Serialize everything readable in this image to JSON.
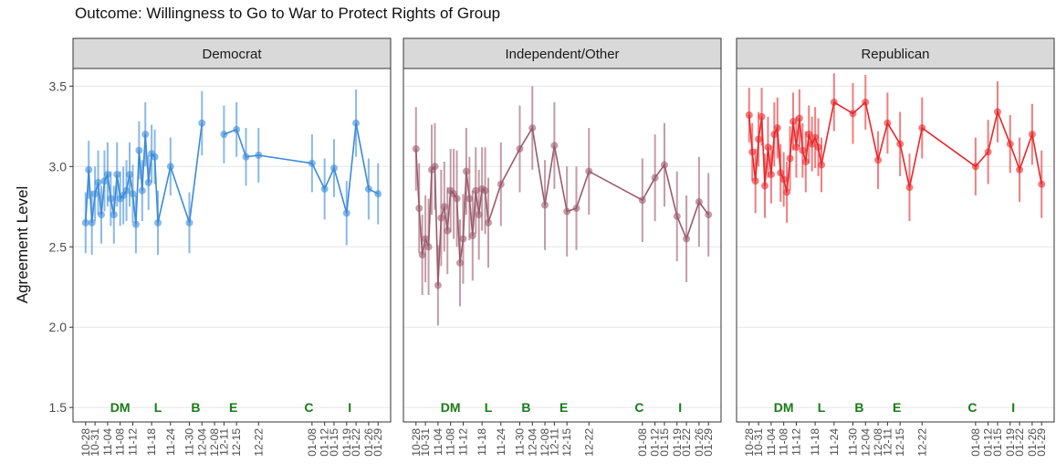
{
  "chart_data": {
    "type": "line",
    "title": "Outcome: Willingness to Go to War to Protect Rights of Group",
    "y_label": "Agreement Level",
    "x": [
      "10-28",
      "10-29",
      "10-30",
      "10-31",
      "11-01",
      "11-02",
      "11-03",
      "11-04",
      "11-05",
      "11-06",
      "11-07",
      "11-08",
      "11-09",
      "11-10",
      "11-11",
      "11-12",
      "11-13",
      "11-14",
      "11-15",
      "11-16",
      "11-17",
      "11-18",
      "11-19",
      "11-20",
      "11-24",
      "11-30",
      "12-04",
      "12-08",
      "12-11",
      "12-15",
      "12-18",
      "12-22",
      "01-08",
      "01-12",
      "01-15",
      "01-19",
      "01-22",
      "01-26",
      "01-29"
    ],
    "xlim": [
      "10-24",
      "02-02"
    ],
    "xticks": [
      "10-28",
      "10-31",
      "11-04",
      "11-08",
      "11-12",
      "11-18",
      "11-24",
      "11-30",
      "12-04",
      "12-08",
      "12-11",
      "12-15",
      "12-22",
      "01-08",
      "01-12",
      "01-15",
      "01-19",
      "01-22",
      "01-26",
      "01-29"
    ],
    "ylim": [
      1.41,
      3.61
    ],
    "yticks": [
      1.5,
      {
        "value": 2,
        "label": "2.0"
      },
      2.5,
      {
        "value": 3,
        "label": "3.0"
      },
      3.5
    ],
    "grid": true,
    "series": [
      {
        "name": "Democrat",
        "color": "#3a8ad8",
        "values": [
          2.65,
          2.98,
          2.65,
          2.83,
          2.9,
          2.7,
          2.91,
          2.95,
          2.8,
          2.7,
          2.95,
          2.8,
          2.82,
          2.85,
          2.95,
          2.83,
          2.64,
          3.1,
          2.85,
          3.2,
          2.9,
          3.08,
          3.06,
          2.65,
          3.0,
          2.65,
          3.27,
          null,
          3.2,
          3.23,
          3.06,
          3.07,
          3.02,
          2.86,
          2.99,
          2.71,
          3.27,
          2.86,
          2.83
        ],
        "errors": [
          0.19,
          0.18,
          0.2,
          0.17,
          0.2,
          0.18,
          0.19,
          0.2,
          0.17,
          0.18,
          0.2,
          0.17,
          0.18,
          0.19,
          0.2,
          0.18,
          0.18,
          0.18,
          0.19,
          0.2,
          0.17,
          0.18,
          0.17,
          0.2,
          0.18,
          0.19,
          0.2,
          null,
          0.18,
          0.17,
          0.18,
          0.17,
          0.18,
          0.19,
          0.18,
          0.2,
          0.21,
          0.19,
          0.19
        ]
      },
      {
        "name": "Independent/Other",
        "color": "#9b5a6e",
        "values": [
          3.11,
          2.74,
          2.45,
          2.55,
          2.5,
          2.98,
          3.0,
          2.26,
          2.68,
          2.75,
          2.6,
          2.85,
          2.83,
          2.8,
          2.4,
          2.55,
          2.97,
          2.8,
          2.57,
          2.85,
          2.7,
          2.86,
          2.85,
          2.65,
          2.89,
          3.11,
          3.24,
          2.76,
          3.13,
          2.72,
          2.74,
          2.97,
          2.79,
          2.93,
          3.01,
          2.69,
          2.55,
          2.78,
          2.7
        ],
        "errors": [
          0.26,
          0.28,
          0.25,
          0.27,
          0.3,
          0.28,
          0.27,
          0.25,
          0.3,
          0.28,
          0.27,
          0.26,
          0.28,
          0.3,
          0.27,
          0.28,
          0.27,
          0.26,
          0.28,
          0.27,
          0.28,
          0.26,
          0.27,
          0.28,
          0.26,
          0.27,
          0.26,
          0.28,
          0.27,
          0.28,
          0.26,
          0.27,
          0.26,
          0.27,
          0.26,
          0.28,
          0.27,
          0.28,
          0.26
        ]
      },
      {
        "name": "Republican",
        "color": "#e8262a",
        "values": [
          3.32,
          3.09,
          2.91,
          3.17,
          3.31,
          2.88,
          3.12,
          2.95,
          3.2,
          3.24,
          2.96,
          2.92,
          2.84,
          3.05,
          3.28,
          3.12,
          3.3,
          3.1,
          3.03,
          3.2,
          3.14,
          3.18,
          3.12,
          3.01,
          3.4,
          3.33,
          3.4,
          3.04,
          3.27,
          3.14,
          2.87,
          3.24,
          3.0,
          3.09,
          3.34,
          3.14,
          2.98,
          3.2,
          2.89
        ],
        "errors": [
          0.17,
          0.18,
          0.2,
          0.17,
          0.18,
          0.2,
          0.19,
          0.18,
          0.2,
          0.19,
          0.18,
          0.17,
          0.19,
          0.2,
          0.18,
          0.19,
          0.18,
          0.17,
          0.19,
          0.18,
          0.17,
          0.19,
          0.18,
          0.17,
          0.18,
          0.19,
          0.17,
          0.18,
          0.19,
          0.2,
          0.21,
          0.19,
          0.18,
          0.2,
          0.19,
          0.18,
          0.2,
          0.19,
          0.21
        ]
      }
    ],
    "annotation_color": "#1a7a1a",
    "annotations": [
      {
        "text": "DM",
        "x": "11-08"
      },
      {
        "text": "L",
        "x": "11-20"
      },
      {
        "text": "B",
        "x": "12-02"
      },
      {
        "text": "E",
        "x": "12-14"
      },
      {
        "text": "C",
        "x": "01-07"
      },
      {
        "text": "I",
        "x": "01-20"
      }
    ]
  }
}
